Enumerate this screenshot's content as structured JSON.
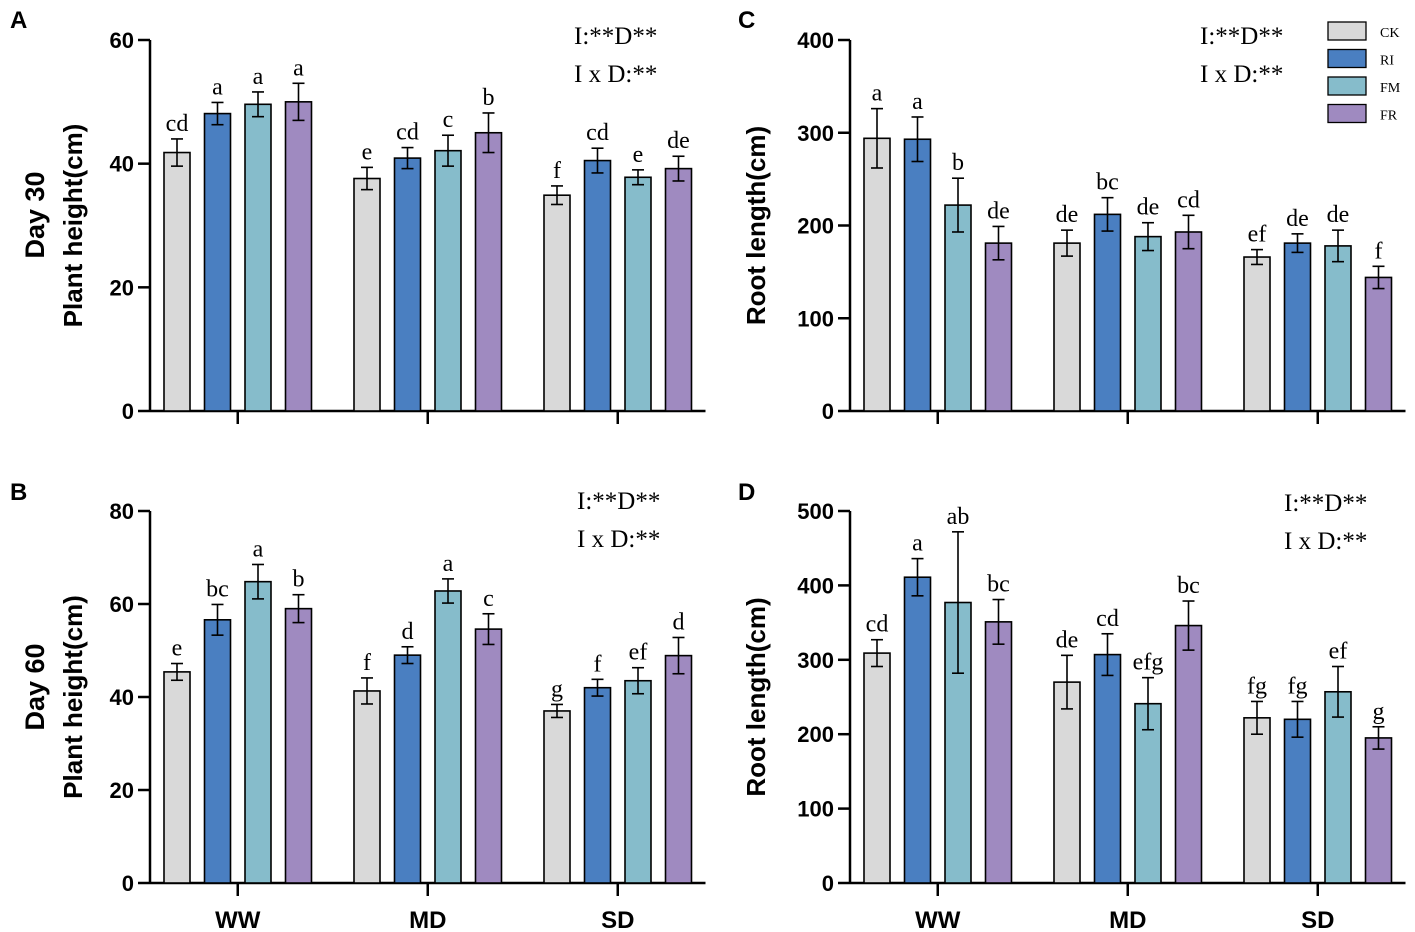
{
  "chart_data": [
    {
      "type": "bar",
      "panel": "A",
      "row_title": "Day 30",
      "ylabel": "Plant height(cm)",
      "ylim": [
        0,
        60
      ],
      "yticks": [
        0,
        20,
        40,
        60
      ],
      "categories": [
        "WW",
        "MD",
        "SD"
      ],
      "show_categories": false,
      "stats": [
        "I:**D**",
        "I x D:**"
      ],
      "series": [
        {
          "name": "CK",
          "values": [
            41.8,
            37.6,
            34.9
          ],
          "errors": [
            2.2,
            1.8,
            1.5
          ],
          "letters": [
            "cd",
            "e",
            "f"
          ]
        },
        {
          "name": "RI",
          "values": [
            48.1,
            40.9,
            40.5
          ],
          "errors": [
            1.8,
            1.7,
            2.0
          ],
          "letters": [
            "a",
            "cd",
            "cd"
          ]
        },
        {
          "name": "FM",
          "values": [
            49.6,
            42.1,
            37.8
          ],
          "errors": [
            2.0,
            2.5,
            1.2
          ],
          "letters": [
            "a",
            "c",
            "e"
          ]
        },
        {
          "name": "FR",
          "values": [
            50.0,
            45.0,
            39.2
          ],
          "errors": [
            3.0,
            3.2,
            2.0
          ],
          "letters": [
            "a",
            "b",
            "de"
          ]
        }
      ]
    },
    {
      "type": "bar",
      "panel": "C",
      "row_title": "",
      "ylabel": "Root length(cm)",
      "ylim": [
        0,
        400
      ],
      "yticks": [
        0,
        100,
        200,
        300,
        400
      ],
      "categories": [
        "WW",
        "MD",
        "SD"
      ],
      "show_categories": false,
      "stats": [
        "I:**D**",
        "I x D:**"
      ],
      "series": [
        {
          "name": "CK",
          "values": [
            294,
            181,
            166
          ],
          "errors": [
            32,
            14,
            8
          ],
          "letters": [
            "a",
            "de",
            "ef"
          ]
        },
        {
          "name": "RI",
          "values": [
            293,
            212,
            181
          ],
          "errors": [
            24,
            18,
            10
          ],
          "letters": [
            "a",
            "bc",
            "de"
          ]
        },
        {
          "name": "FM",
          "values": [
            222,
            188,
            178
          ],
          "errors": [
            29,
            15,
            17
          ],
          "letters": [
            "b",
            "de",
            "de"
          ]
        },
        {
          "name": "FR",
          "values": [
            181,
            193,
            144
          ],
          "errors": [
            18,
            18,
            12
          ],
          "letters": [
            "de",
            "cd",
            "f"
          ]
        }
      ]
    },
    {
      "type": "bar",
      "panel": "B",
      "row_title": "Day 60",
      "ylabel": "Plant height(cm)",
      "ylim": [
        0,
        80
      ],
      "yticks": [
        0,
        20,
        40,
        60,
        80
      ],
      "categories": [
        "WW",
        "MD",
        "SD"
      ],
      "show_categories": true,
      "stats": [
        "I:**D**",
        "I x D:**"
      ],
      "series": [
        {
          "name": "CK",
          "values": [
            45.4,
            41.3,
            37.0
          ],
          "errors": [
            1.8,
            2.8,
            1.4
          ],
          "letters": [
            "e",
            "f",
            "g"
          ]
        },
        {
          "name": "RI",
          "values": [
            56.6,
            49.0,
            42.0
          ],
          "errors": [
            3.3,
            1.8,
            1.8
          ],
          "letters": [
            "bc",
            "d",
            "f"
          ]
        },
        {
          "name": "FM",
          "values": [
            64.8,
            62.8,
            43.5
          ],
          "errors": [
            3.7,
            2.6,
            2.8
          ],
          "letters": [
            "a",
            "a",
            "ef"
          ]
        },
        {
          "name": "FR",
          "values": [
            59.0,
            54.6,
            48.9
          ],
          "errors": [
            3.0,
            3.3,
            3.9
          ],
          "letters": [
            "b",
            "c",
            "d"
          ]
        }
      ]
    },
    {
      "type": "bar",
      "panel": "D",
      "row_title": "",
      "ylabel": "Root length(cm)",
      "ylim": [
        0,
        500
      ],
      "yticks": [
        0,
        100,
        200,
        300,
        400,
        500
      ],
      "categories": [
        "WW",
        "MD",
        "SD"
      ],
      "show_categories": true,
      "stats": [
        "I:**D**",
        "I x D:**"
      ],
      "series": [
        {
          "name": "CK",
          "values": [
            309,
            270,
            222
          ],
          "errors": [
            18,
            36,
            22
          ],
          "letters": [
            "cd",
            "de",
            "fg"
          ]
        },
        {
          "name": "RI",
          "values": [
            411,
            307,
            220
          ],
          "errors": [
            25,
            28,
            24
          ],
          "letters": [
            "a",
            "cd",
            "fg"
          ]
        },
        {
          "name": "FM",
          "values": [
            377,
            241,
            257
          ],
          "errors": [
            95,
            35,
            34
          ],
          "letters": [
            "ab",
            "efg",
            "ef"
          ]
        },
        {
          "name": "FR",
          "values": [
            351,
            346,
            195
          ],
          "errors": [
            30,
            33,
            15
          ],
          "letters": [
            "bc",
            "bc",
            "g"
          ]
        }
      ]
    }
  ],
  "legend": [
    {
      "name": "CK",
      "color": "#d9d9d9"
    },
    {
      "name": "RI",
      "color": "#4a7fc1"
    },
    {
      "name": "FM",
      "color": "#86bccb"
    },
    {
      "name": "FR",
      "color": "#9f8ac0"
    }
  ]
}
